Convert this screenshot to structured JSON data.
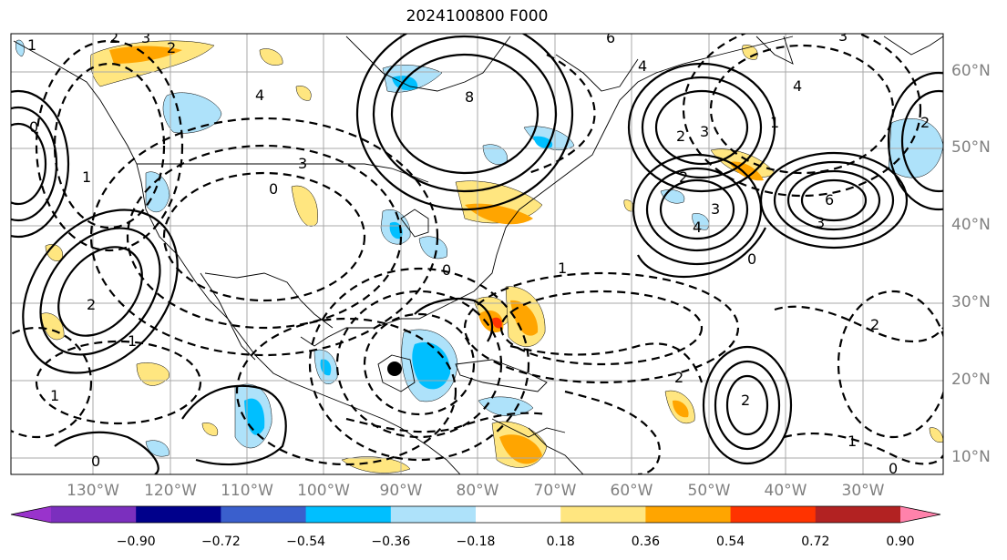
{
  "title": "2024100800 F000",
  "lat_labels": [
    "60°N",
    "50°N",
    "40°N",
    "30°N",
    "20°N",
    "10°N"
  ],
  "lon_labels": [
    "130°W",
    "120°W",
    "110°W",
    "100°W",
    "90°W",
    "80°W",
    "70°W",
    "60°W",
    "50°W",
    "40°W",
    "30°W"
  ],
  "colorbar": {
    "ticks": [
      "−0.90",
      "−0.72",
      "−0.54",
      "−0.36",
      "−0.18",
      "0.18",
      "0.36",
      "0.54",
      "0.72",
      "0.90"
    ],
    "colors": [
      "#9933cc",
      "#7b2fbe",
      "#00008b",
      "#3a5fcd",
      "#00bfff",
      "#aee2fa",
      "#ffffff",
      "#ffe680",
      "#ffa500",
      "#ff3300",
      "#b22222",
      "#ff82ab"
    ]
  },
  "contour_labels": [
    "2",
    "3",
    "1",
    "0",
    "2",
    "1",
    "0",
    "2",
    "1",
    "1",
    "0",
    "6",
    "4",
    "8",
    "2",
    "3",
    "1",
    "4",
    "2",
    "3",
    "6",
    "3",
    "2",
    "4",
    "3",
    "0",
    "2",
    "4",
    "3",
    "2",
    "1",
    "0",
    "2",
    "1",
    "0"
  ]
}
